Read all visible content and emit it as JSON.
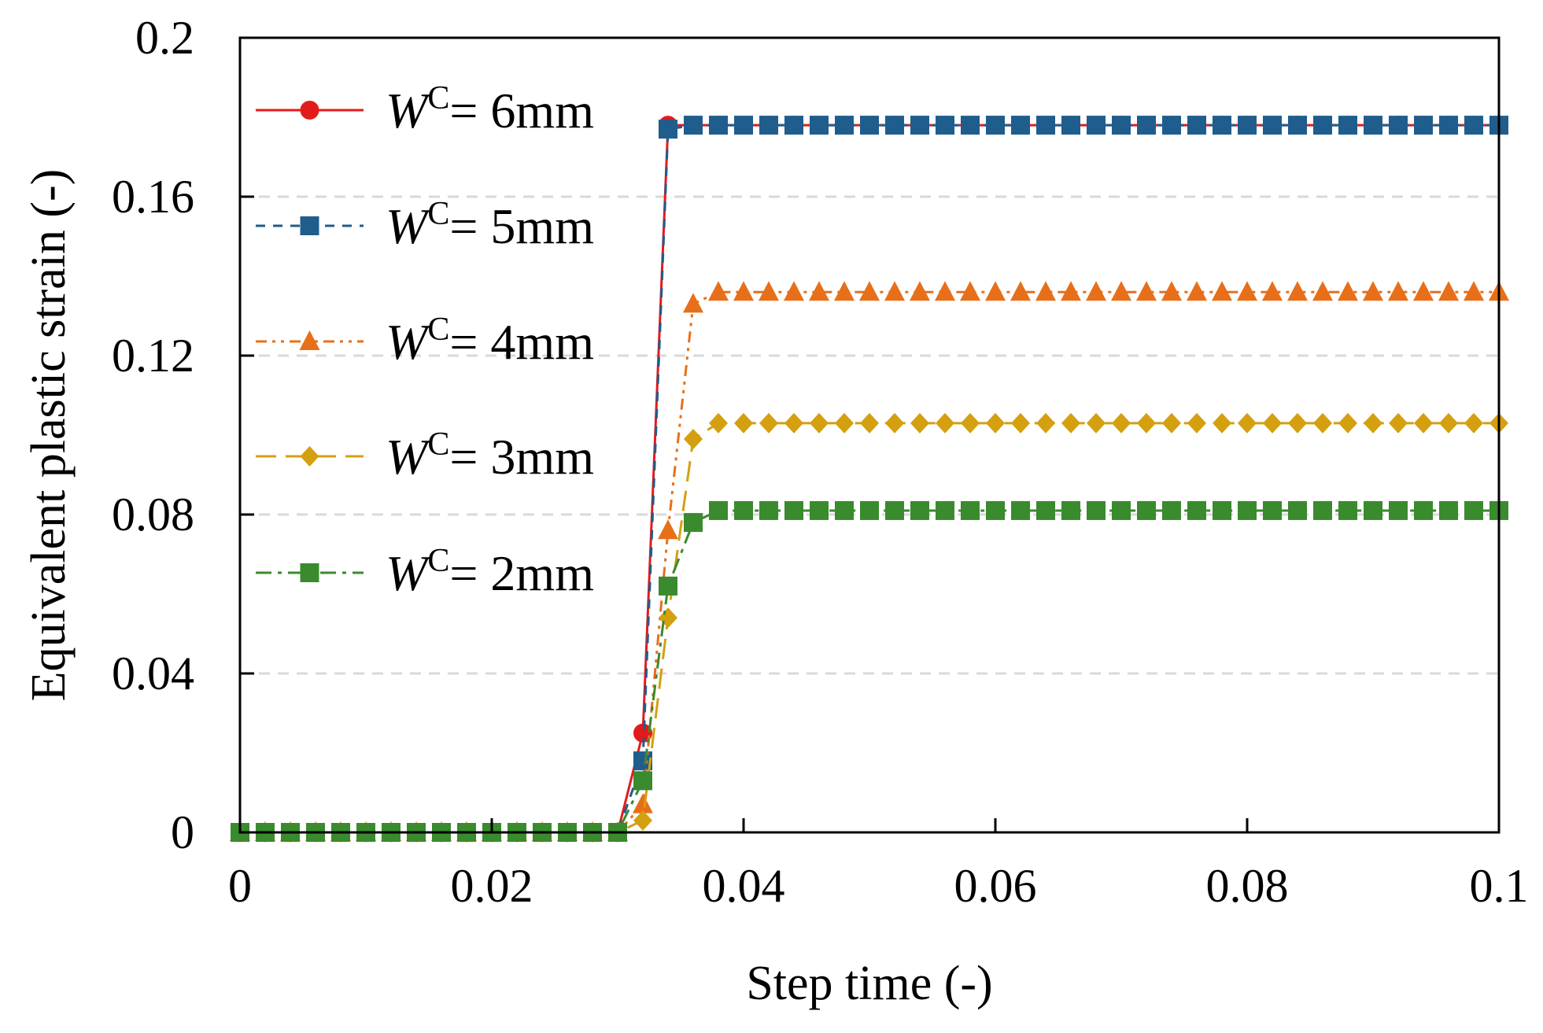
{
  "chart_data": {
    "type": "line",
    "title": "",
    "xlabel": "Step time (-)",
    "ylabel": "Equivalent plastic strain (-)",
    "xlim": [
      0,
      0.1
    ],
    "ylim": [
      0,
      0.2
    ],
    "x_ticks": [
      "0",
      "0.02",
      "0.04",
      "0.06",
      "0.08",
      "0.1"
    ],
    "y_ticks": [
      "0",
      "0.04",
      "0.08",
      "0.12",
      "0.16",
      "0.2"
    ],
    "grid": "horizontal dashed",
    "legend_position": "top-left",
    "x": [
      0,
      0.002,
      0.004,
      0.006,
      0.008,
      0.01,
      0.012,
      0.014,
      0.016,
      0.018,
      0.02,
      0.022,
      0.024,
      0.026,
      0.028,
      0.03,
      0.032,
      0.034,
      0.036,
      0.038,
      0.04,
      0.042,
      0.044,
      0.046,
      0.048,
      0.05,
      0.052,
      0.054,
      0.056,
      0.058,
      0.06,
      0.062,
      0.064,
      0.066,
      0.068,
      0.07,
      0.072,
      0.074,
      0.076,
      0.078,
      0.08,
      0.082,
      0.084,
      0.086,
      0.088,
      0.09,
      0.092,
      0.094,
      0.096,
      0.098,
      0.1
    ],
    "series": [
      {
        "name": "W C = 6mm",
        "legend_w": "W",
        "legend_sup": "C",
        "legend_rest": "= 6mm",
        "color": "#e31a1c",
        "marker": "circle",
        "dash": "solid",
        "values": [
          0,
          0,
          0,
          0,
          0,
          0,
          0,
          0,
          0,
          0,
          0,
          0,
          0,
          0,
          0,
          0,
          0.025,
          0.178,
          0.178,
          0.178,
          0.178,
          0.178,
          0.178,
          0.178,
          0.178,
          0.178,
          0.178,
          0.178,
          0.178,
          0.178,
          0.178,
          0.178,
          0.178,
          0.178,
          0.178,
          0.178,
          0.178,
          0.178,
          0.178,
          0.178,
          0.178,
          0.178,
          0.178,
          0.178,
          0.178,
          0.178,
          0.178,
          0.178,
          0.178,
          0.178,
          0.178
        ]
      },
      {
        "name": "W C = 5mm",
        "legend_w": "W",
        "legend_sup": "C",
        "legend_rest": "= 5mm",
        "color": "#1f5d8c",
        "marker": "square",
        "dash": "dashed",
        "values": [
          0,
          0,
          0,
          0,
          0,
          0,
          0,
          0,
          0,
          0,
          0,
          0,
          0,
          0,
          0,
          0,
          0.018,
          0.177,
          0.178,
          0.178,
          0.178,
          0.178,
          0.178,
          0.178,
          0.178,
          0.178,
          0.178,
          0.178,
          0.178,
          0.178,
          0.178,
          0.178,
          0.178,
          0.178,
          0.178,
          0.178,
          0.178,
          0.178,
          0.178,
          0.178,
          0.178,
          0.178,
          0.178,
          0.178,
          0.178,
          0.178,
          0.178,
          0.178,
          0.178,
          0.178,
          0.178
        ]
      },
      {
        "name": "W C = 4mm",
        "legend_w": "W",
        "legend_sup": "C",
        "legend_rest": "= 4mm",
        "color": "#e86f1a",
        "marker": "triangle",
        "dash": "dash-dot-dot",
        "values": [
          0,
          0,
          0,
          0,
          0,
          0,
          0,
          0,
          0,
          0,
          0,
          0,
          0,
          0,
          0,
          0,
          0.007,
          0.076,
          0.133,
          0.136,
          0.136,
          0.136,
          0.136,
          0.136,
          0.136,
          0.136,
          0.136,
          0.136,
          0.136,
          0.136,
          0.136,
          0.136,
          0.136,
          0.136,
          0.136,
          0.136,
          0.136,
          0.136,
          0.136,
          0.136,
          0.136,
          0.136,
          0.136,
          0.136,
          0.136,
          0.136,
          0.136,
          0.136,
          0.136,
          0.136,
          0.136
        ]
      },
      {
        "name": "W C = 3mm",
        "legend_w": "W",
        "legend_sup": "C",
        "legend_rest": "= 3mm",
        "color": "#d4a010",
        "marker": "diamond",
        "dash": "long-dash",
        "values": [
          0,
          0,
          0,
          0,
          0,
          0,
          0,
          0,
          0,
          0,
          0,
          0,
          0,
          0,
          0,
          0,
          0.003,
          0.054,
          0.099,
          0.103,
          0.103,
          0.103,
          0.103,
          0.103,
          0.103,
          0.103,
          0.103,
          0.103,
          0.103,
          0.103,
          0.103,
          0.103,
          0.103,
          0.103,
          0.103,
          0.103,
          0.103,
          0.103,
          0.103,
          0.103,
          0.103,
          0.103,
          0.103,
          0.103,
          0.103,
          0.103,
          0.103,
          0.103,
          0.103,
          0.103,
          0.103
        ]
      },
      {
        "name": "W C = 2mm",
        "legend_w": "W",
        "legend_sup": "C",
        "legend_rest": "= 2mm",
        "color": "#3a8a2e",
        "marker": "square",
        "dash": "dash-dot",
        "values": [
          0,
          0,
          0,
          0,
          0,
          0,
          0,
          0,
          0,
          0,
          0,
          0,
          0,
          0,
          0,
          0,
          0.013,
          0.062,
          0.078,
          0.081,
          0.081,
          0.081,
          0.081,
          0.081,
          0.081,
          0.081,
          0.081,
          0.081,
          0.081,
          0.081,
          0.081,
          0.081,
          0.081,
          0.081,
          0.081,
          0.081,
          0.081,
          0.081,
          0.081,
          0.081,
          0.081,
          0.081,
          0.081,
          0.081,
          0.081,
          0.081,
          0.081,
          0.081,
          0.081,
          0.081,
          0.081
        ]
      }
    ]
  }
}
